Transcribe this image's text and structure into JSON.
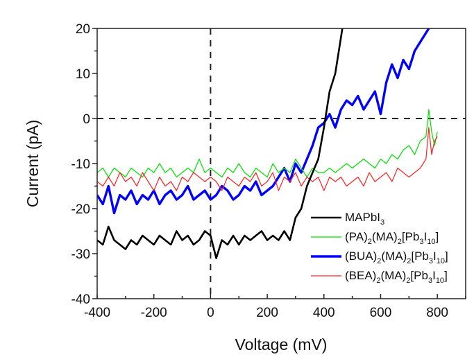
{
  "chart_data": {
    "type": "line",
    "title": "",
    "xlabel": "Voltage (mV)",
    "ylabel": "Current (pA)",
    "xlim": [
      -400,
      900
    ],
    "ylim": [
      -40,
      20
    ],
    "xticks": [
      -400,
      -200,
      0,
      200,
      400,
      600,
      800
    ],
    "yticks": [
      -40,
      -30,
      -20,
      -10,
      0,
      10,
      20
    ],
    "xtick_labels": [
      "-400",
      "-200",
      "0",
      "200",
      "400",
      "600",
      "800"
    ],
    "ytick_labels": [
      "-40",
      "-30",
      "-20",
      "-10",
      "0",
      "10",
      "20"
    ],
    "grid": false,
    "reference_lines": [
      {
        "orientation": "horizontal",
        "value": 0,
        "style": "dashed"
      },
      {
        "orientation": "vertical",
        "value": 0,
        "style": "dashed"
      }
    ],
    "legend": {
      "position": "bottom-right",
      "entries": [
        {
          "base": "MAPbI",
          "sub": "3",
          "parts": [
            [
              "MAPbI",
              ""
            ],
            [
              "3",
              "sub"
            ]
          ]
        },
        {
          "parts": [
            [
              "(PA)",
              ""
            ],
            [
              "2",
              "sub"
            ],
            [
              "(MA)",
              ""
            ],
            [
              "2",
              "sub"
            ],
            [
              "[Pb",
              ""
            ],
            [
              "3",
              "sub"
            ],
            [
              "I",
              ""
            ],
            [
              "10",
              "sub"
            ],
            [
              "]",
              ""
            ]
          ]
        },
        {
          "parts": [
            [
              "(BUA)",
              ""
            ],
            [
              "2",
              "sub"
            ],
            [
              "(MA)",
              ""
            ],
            [
              "2",
              "sub"
            ],
            [
              "[Pb",
              ""
            ],
            [
              "3",
              "sub"
            ],
            [
              "I",
              ""
            ],
            [
              "10",
              "sub"
            ],
            [
              "]",
              ""
            ]
          ]
        },
        {
          "parts": [
            [
              "(BEA)",
              ""
            ],
            [
              "2",
              "sub"
            ],
            [
              "(MA)",
              ""
            ],
            [
              "2",
              "sub"
            ],
            [
              "[Pb",
              ""
            ],
            [
              "3",
              "sub"
            ],
            [
              "I",
              ""
            ],
            [
              "10",
              "sub"
            ],
            [
              "]",
              ""
            ]
          ]
        }
      ]
    },
    "series": [
      {
        "name": "MAPbI3",
        "color": "#000000",
        "x": [
          -400,
          -380,
          -360,
          -340,
          -320,
          -300,
          -280,
          -260,
          -240,
          -220,
          -200,
          -180,
          -160,
          -140,
          -120,
          -100,
          -80,
          -60,
          -40,
          -20,
          0,
          20,
          40,
          60,
          80,
          100,
          120,
          140,
          160,
          180,
          200,
          220,
          240,
          260,
          280,
          300,
          320,
          340,
          360,
          380,
          400,
          420,
          440,
          460,
          465
        ],
        "y": [
          -27,
          -28,
          -24,
          -27,
          -28,
          -29,
          -27,
          -28,
          -26,
          -27,
          -28,
          -26,
          -27,
          -28,
          -25,
          -27,
          -26,
          -28,
          -27,
          -25,
          -26,
          -31,
          -27,
          -28,
          -26,
          -28,
          -26,
          -27,
          -26,
          -25,
          -27,
          -26,
          -27,
          -25,
          -27,
          -22,
          -20,
          -15,
          -12,
          -9,
          -2,
          6,
          10,
          18,
          20
        ]
      },
      {
        "name": "(PA)2(MA)2[Pb3I10]",
        "color": "#00e000",
        "x": [
          -400,
          -380,
          -360,
          -340,
          -320,
          -300,
          -280,
          -260,
          -240,
          -220,
          -200,
          -180,
          -160,
          -140,
          -120,
          -100,
          -80,
          -60,
          -40,
          -20,
          0,
          20,
          40,
          60,
          80,
          100,
          120,
          140,
          160,
          180,
          200,
          220,
          240,
          260,
          280,
          300,
          320,
          340,
          360,
          380,
          400,
          420,
          440,
          460,
          480,
          500,
          520,
          540,
          560,
          580,
          600,
          620,
          640,
          660,
          680,
          700,
          720,
          740,
          760,
          770,
          780,
          790,
          800
        ],
        "y": [
          -12,
          -11,
          -13,
          -11,
          -12,
          -13,
          -11,
          -12,
          -13,
          -11,
          -12,
          -10,
          -12,
          -11,
          -13,
          -12,
          -11,
          -12,
          -9,
          -12,
          -11,
          -12,
          -13,
          -11,
          -12,
          -10,
          -12,
          -13,
          -11,
          -12,
          -13,
          -10,
          -12,
          -11,
          -12,
          -9,
          -11,
          -13,
          -11,
          -12,
          -12,
          -11,
          -12,
          -11,
          -10,
          -11,
          -10,
          -9,
          -10,
          -11,
          -9,
          -10,
          -8,
          -9,
          -7,
          -6,
          -8,
          -5,
          -4,
          2,
          -3,
          -6,
          -3
        ]
      },
      {
        "name": "(BUA)2(MA)2[Pb3I10]",
        "color": "#0000ff",
        "x": [
          -400,
          -380,
          -360,
          -340,
          -320,
          -300,
          -280,
          -260,
          -240,
          -220,
          -200,
          -180,
          -160,
          -140,
          -120,
          -100,
          -80,
          -60,
          -40,
          -20,
          0,
          20,
          40,
          60,
          80,
          100,
          120,
          140,
          160,
          180,
          200,
          220,
          240,
          260,
          280,
          300,
          320,
          340,
          360,
          380,
          400,
          420,
          440,
          460,
          480,
          500,
          520,
          540,
          560,
          580,
          600,
          620,
          640,
          660,
          680,
          700,
          720,
          740,
          760,
          770
        ],
        "y": [
          -17,
          -19,
          -15,
          -21,
          -17,
          -18,
          -16,
          -19,
          -17,
          -18,
          -16,
          -19,
          -17,
          -16,
          -18,
          -17,
          -15,
          -18,
          -17,
          -16,
          -18,
          -17,
          -15,
          -16,
          -18,
          -17,
          -15,
          -16,
          -14,
          -17,
          -16,
          -15,
          -13,
          -11,
          -14,
          -10,
          -12,
          -9,
          -6,
          -2,
          -1,
          1,
          -2,
          2,
          4,
          3,
          5,
          2,
          4,
          6,
          1,
          8,
          12,
          9,
          13,
          11,
          15,
          17,
          19,
          20
        ]
      },
      {
        "name": "(BEA)2(MA)2[Pb3I10]",
        "color": "#ff2020",
        "x": [
          -400,
          -380,
          -360,
          -340,
          -320,
          -300,
          -280,
          -260,
          -240,
          -220,
          -200,
          -180,
          -160,
          -140,
          -120,
          -100,
          -80,
          -60,
          -40,
          -20,
          0,
          20,
          40,
          60,
          80,
          100,
          120,
          140,
          160,
          180,
          200,
          220,
          240,
          260,
          280,
          300,
          320,
          340,
          360,
          380,
          400,
          420,
          440,
          460,
          480,
          500,
          520,
          540,
          560,
          580,
          600,
          620,
          640,
          660,
          680,
          700,
          720,
          740,
          760,
          770,
          780,
          790,
          800
        ],
        "y": [
          -14,
          -15,
          -13,
          -15,
          -12,
          -14,
          -13,
          -15,
          -12,
          -14,
          -16,
          -13,
          -15,
          -14,
          -16,
          -13,
          -14,
          -12,
          -13,
          -14,
          -13,
          -14,
          -16,
          -13,
          -14,
          -15,
          -13,
          -14,
          -12,
          -15,
          -14,
          -12,
          -16,
          -13,
          -14,
          -12,
          -15,
          -13,
          -14,
          -13,
          -16,
          -13,
          -14,
          -13,
          -15,
          -14,
          -13,
          -15,
          -12,
          -14,
          -13,
          -12,
          -14,
          -11,
          -12,
          -13,
          -12,
          -11,
          -9,
          -2,
          -8,
          -5,
          -4
        ]
      }
    ]
  }
}
